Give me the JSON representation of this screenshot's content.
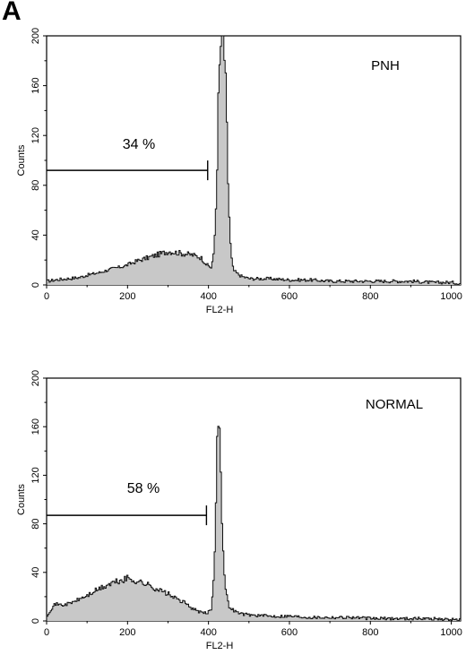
{
  "figure": {
    "panel_letter": "A"
  },
  "chart_data": [
    {
      "type": "area",
      "annotation": "PNH",
      "xlabel": "FL2-H",
      "ylabel": "Counts",
      "xlim": [
        0,
        1023
      ],
      "ylim": [
        0,
        200
      ],
      "x_ticks": [
        0,
        200,
        400,
        600,
        800,
        1000
      ],
      "y_ticks": [
        0,
        40,
        80,
        120,
        160,
        200
      ],
      "grid": false,
      "gate": {
        "label": "34 %",
        "x_start": 0,
        "x_end": 398,
        "y": 92
      },
      "x": [
        0,
        20,
        50,
        80,
        100,
        130,
        160,
        190,
        220,
        250,
        280,
        300,
        320,
        340,
        360,
        380,
        395,
        405,
        412,
        418,
        424,
        430,
        436,
        442,
        448,
        454,
        460,
        470,
        480,
        500,
        550,
        600,
        650,
        700,
        750,
        800,
        850,
        900,
        950,
        1000,
        1023
      ],
      "y": [
        3,
        4,
        5,
        6,
        8,
        10,
        13,
        15,
        19,
        22,
        25,
        27,
        26,
        25,
        24,
        22,
        16,
        14,
        25,
        70,
        160,
        200,
        200,
        150,
        70,
        25,
        12,
        9,
        7,
        5,
        5,
        4,
        4,
        3,
        3,
        3,
        3,
        3,
        2,
        2,
        1
      ]
    },
    {
      "type": "area",
      "annotation": "NORMAL",
      "xlabel": "FL2-H",
      "ylabel": "Counts",
      "xlim": [
        0,
        1023
      ],
      "ylim": [
        0,
        200
      ],
      "x_ticks": [
        0,
        200,
        400,
        600,
        800,
        1000
      ],
      "y_ticks": [
        0,
        40,
        80,
        120,
        160,
        200
      ],
      "grid": false,
      "gate": {
        "label": "58 %",
        "x_start": 0,
        "x_end": 395,
        "y": 87
      },
      "x": [
        0,
        10,
        20,
        40,
        60,
        80,
        100,
        120,
        140,
        160,
        180,
        200,
        220,
        240,
        260,
        280,
        300,
        320,
        340,
        360,
        380,
        395,
        405,
        410,
        414,
        418,
        422,
        426,
        430,
        435,
        440,
        445,
        450,
        460,
        470,
        480,
        500,
        550,
        600,
        650,
        700,
        750,
        800,
        850,
        900,
        950,
        1000,
        1023
      ],
      "y": [
        5,
        10,
        14,
        13,
        15,
        18,
        21,
        25,
        28,
        31,
        33,
        35,
        33,
        31,
        28,
        25,
        22,
        18,
        15,
        10,
        7,
        6,
        10,
        25,
        60,
        120,
        178,
        165,
        110,
        55,
        28,
        18,
        12,
        9,
        7,
        6,
        5,
        4,
        4,
        3,
        3,
        3,
        2,
        2,
        2,
        2,
        1,
        1
      ]
    }
  ]
}
